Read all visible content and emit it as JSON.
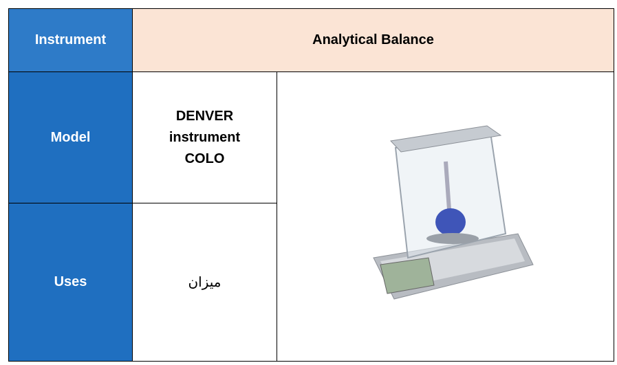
{
  "table": {
    "header": [
      "Instrument",
      "Analytical Balance"
    ],
    "rows": [
      [
        "Model",
        [
          "DENVER",
          "instrument",
          "COLO"
        ]
      ],
      [
        "Uses",
        "ميزان"
      ]
    ]
  }
}
